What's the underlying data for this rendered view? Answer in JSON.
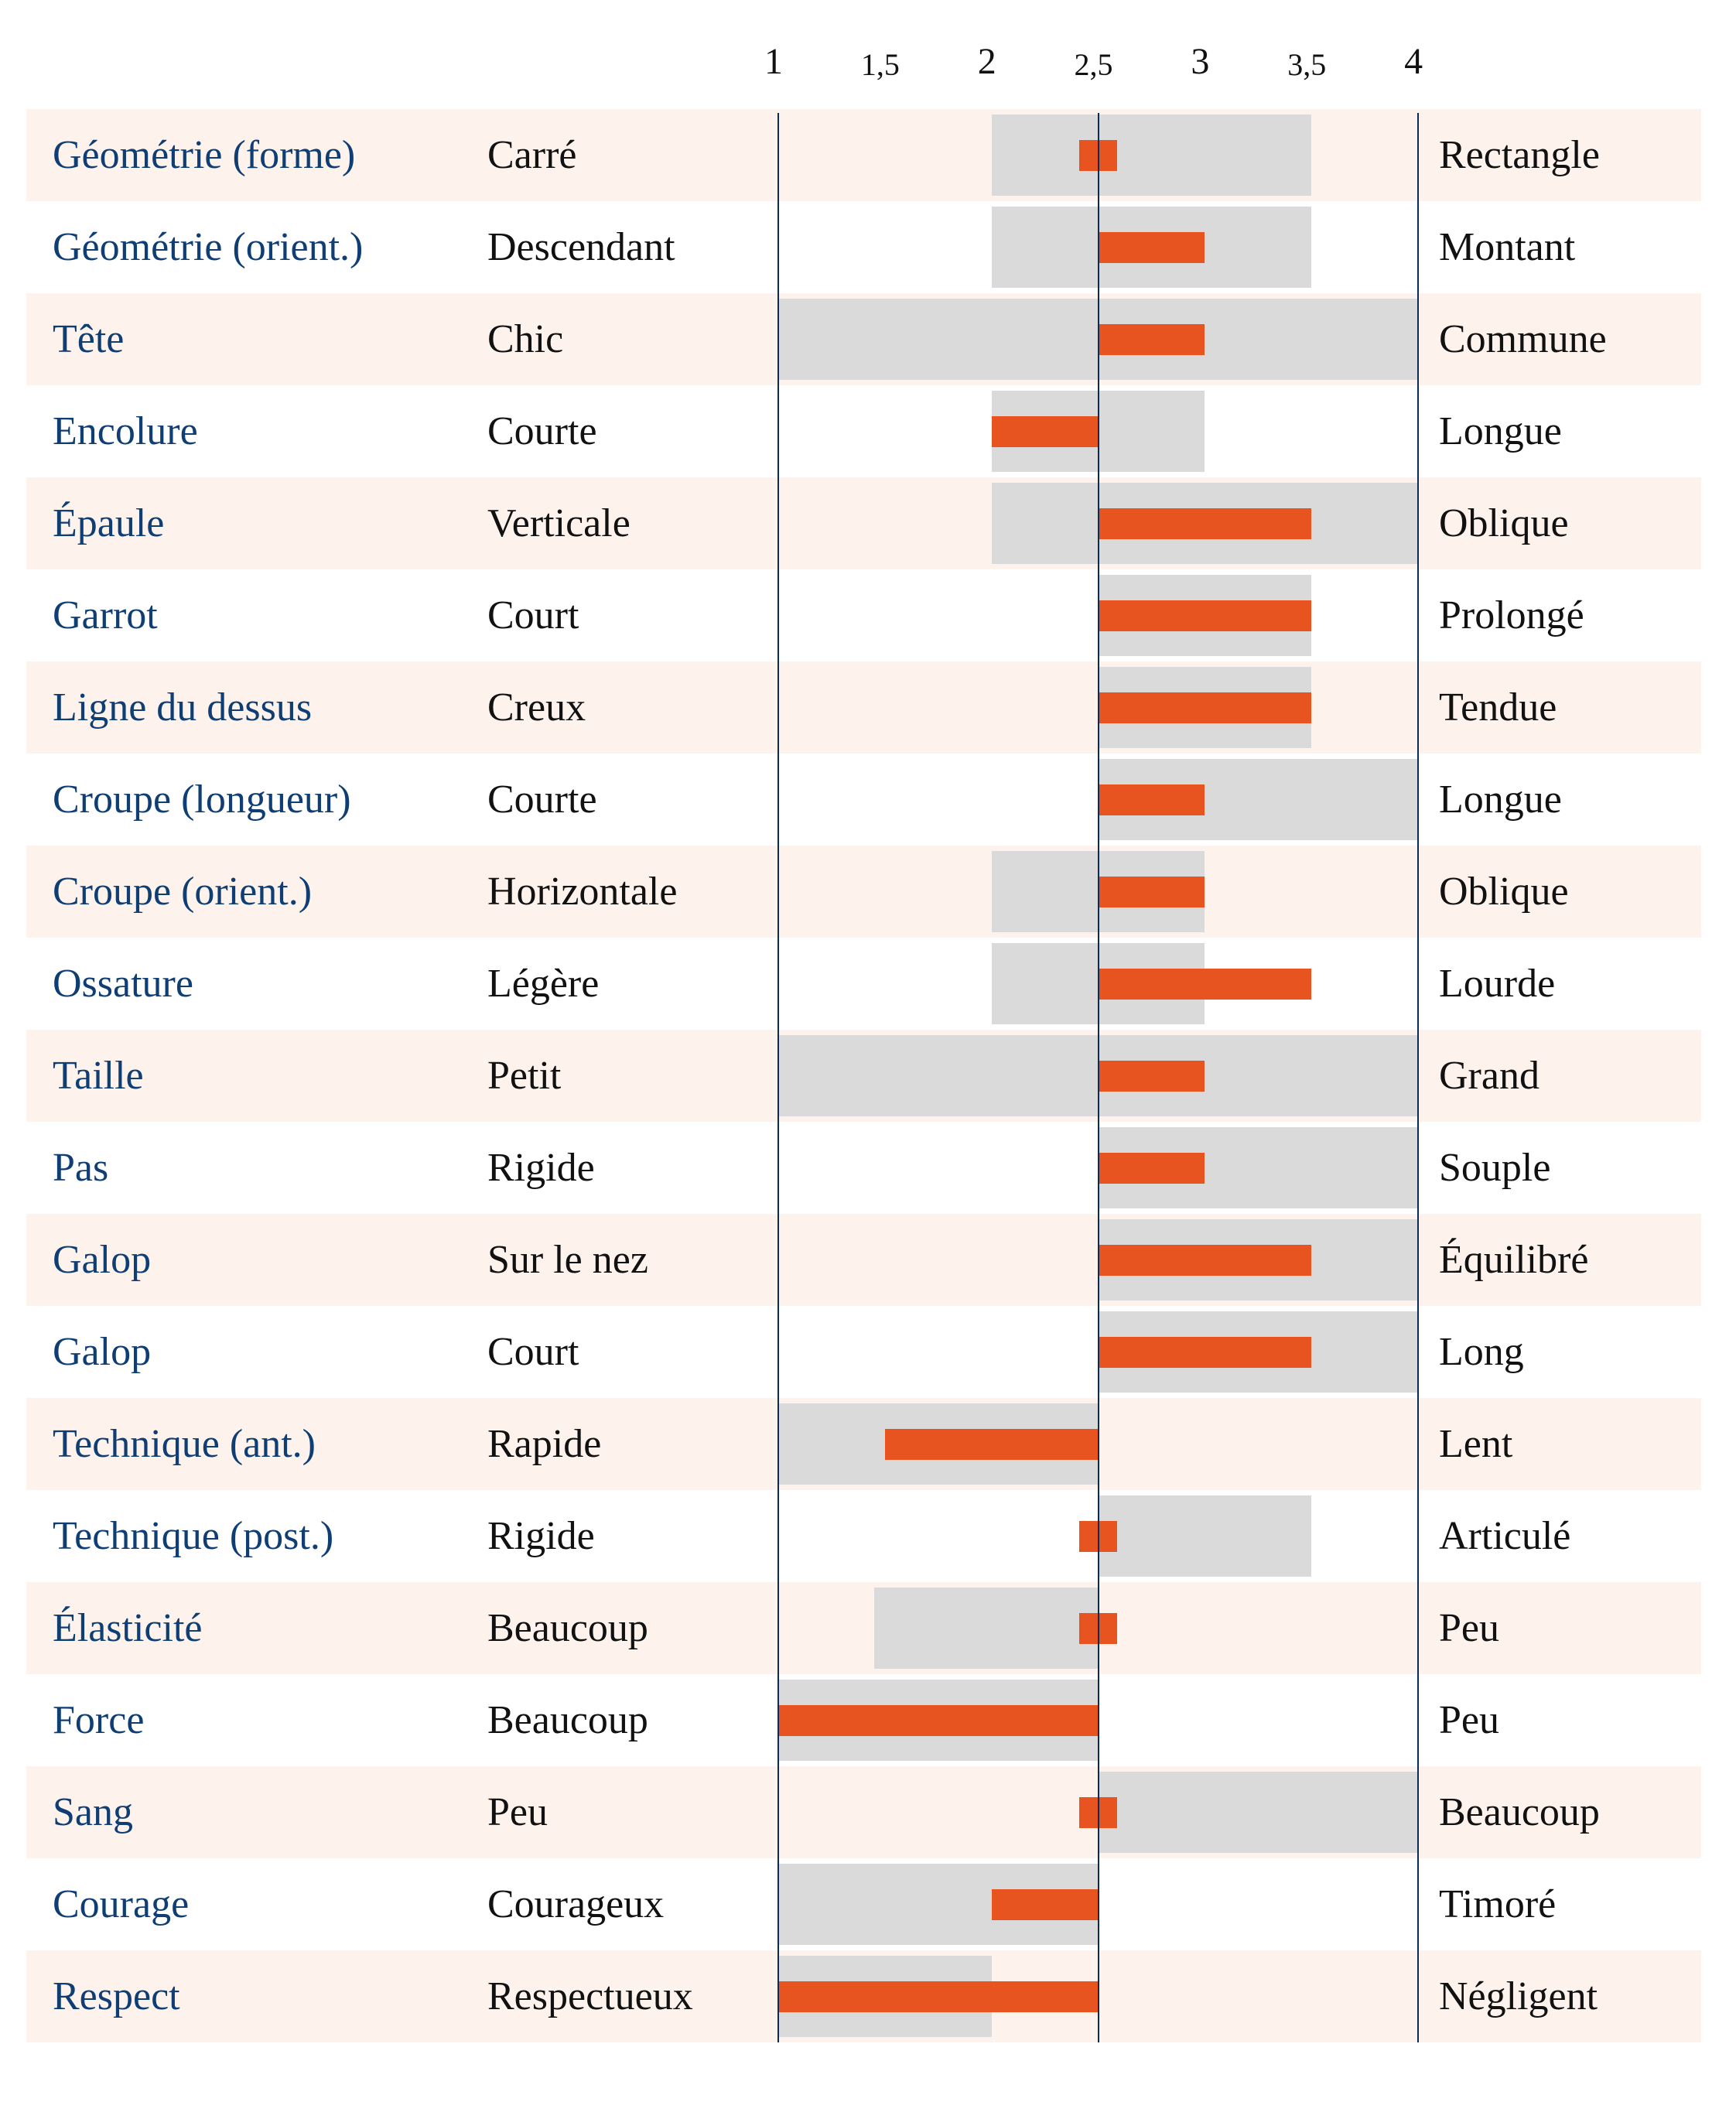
{
  "chart_data": {
    "type": "bar",
    "title": "",
    "xlim": [
      1,
      4
    ],
    "reference": 2.5,
    "ticks": [
      "1",
      "1,5",
      "2",
      "2,5",
      "3",
      "3,5",
      "4"
    ],
    "tick_values": [
      1,
      1.5,
      2,
      2.5,
      3,
      3.5,
      4
    ],
    "colors": {
      "bar": "#e85420",
      "range": "#dadada",
      "attr_text": "#0f3e75",
      "shade": "#fdf2ec",
      "axis": "#0b2a55"
    },
    "rows": [
      {
        "attr": "Géométrie (forme)",
        "low": "Carré",
        "high": "Rectangle",
        "range": [
          2,
          3.5
        ],
        "value": 2.5
      },
      {
        "attr": "Géométrie (orient.)",
        "low": "Descendant",
        "high": "Montant",
        "range": [
          2,
          3.5
        ],
        "value": 3
      },
      {
        "attr": "Tête",
        "low": "Chic",
        "high": "Commune",
        "range": [
          1,
          4
        ],
        "value": 3
      },
      {
        "attr": "Encolure",
        "low": "Courte",
        "high": "Longue",
        "range": [
          2,
          3
        ],
        "value": 2
      },
      {
        "attr": "Épaule",
        "low": "Verticale",
        "high": "Oblique",
        "range": [
          2,
          4
        ],
        "value": 3.5
      },
      {
        "attr": "Garrot",
        "low": "Court",
        "high": "Prolongé",
        "range": [
          2.5,
          3.5
        ],
        "value": 3.5
      },
      {
        "attr": "Ligne du dessus",
        "low": "Creux",
        "high": "Tendue",
        "range": [
          2.5,
          3.5
        ],
        "value": 3.5
      },
      {
        "attr": "Croupe (longueur)",
        "low": "Courte",
        "high": "Longue",
        "range": [
          2.5,
          4
        ],
        "value": 3
      },
      {
        "attr": "Croupe (orient.)",
        "low": "Horizontale",
        "high": "Oblique",
        "range": [
          2,
          3
        ],
        "value": 3
      },
      {
        "attr": "Ossature",
        "low": "Légère",
        "high": "Lourde",
        "range": [
          2,
          3
        ],
        "value": 3.5
      },
      {
        "attr": "Taille",
        "low": "Petit",
        "high": "Grand",
        "range": [
          1,
          4
        ],
        "value": 3
      },
      {
        "attr": "Pas",
        "low": "Rigide",
        "high": "Souple",
        "range": [
          2.5,
          4
        ],
        "value": 3
      },
      {
        "attr": "Galop",
        "low": "Sur le nez",
        "high": "Équilibré",
        "range": [
          2.5,
          4
        ],
        "value": 3.5
      },
      {
        "attr": "Galop",
        "low": "Court",
        "high": "Long",
        "range": [
          2.5,
          4
        ],
        "value": 3.5
      },
      {
        "attr": "Technique (ant.)",
        "low": "Rapide",
        "high": "Lent",
        "range": [
          1,
          2.5
        ],
        "value": 1.5
      },
      {
        "attr": "Technique (post.)",
        "low": "Rigide",
        "high": "Articulé",
        "range": [
          2.5,
          3.5
        ],
        "value": 2.5
      },
      {
        "attr": "Élasticité",
        "low": "Beaucoup",
        "high": "Peu",
        "range": [
          1.45,
          2.5
        ],
        "value": 2.5
      },
      {
        "attr": "Force",
        "low": "Beaucoup",
        "high": "Peu",
        "range": [
          1,
          2.5
        ],
        "value": 1
      },
      {
        "attr": "Sang",
        "low": "Peu",
        "high": "Beaucoup",
        "range": [
          2.5,
          4
        ],
        "value": 2.5
      },
      {
        "attr": "Courage",
        "low": "Courageux",
        "high": "Timoré",
        "range": [
          1,
          2.5
        ],
        "value": 2
      },
      {
        "attr": "Respect",
        "low": "Respectueux",
        "high": "Négligent",
        "range": [
          1,
          2
        ],
        "value": 1
      }
    ]
  }
}
